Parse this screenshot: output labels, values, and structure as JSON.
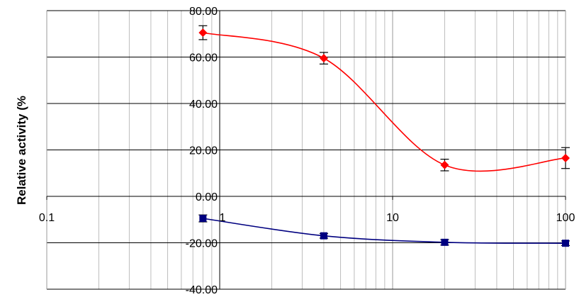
{
  "chart_data": {
    "type": "line",
    "title": "",
    "xlabel": "",
    "ylabel": "Relative activity (%",
    "x_scale": "log",
    "xlim": [
      0.1,
      100
    ],
    "ylim": [
      -40,
      80
    ],
    "x_ticks": [
      {
        "value": 0.1,
        "label": "0.1"
      },
      {
        "value": 1,
        "label": "1"
      },
      {
        "value": 10,
        "label": "10"
      },
      {
        "value": 100,
        "label": "100"
      }
    ],
    "y_ticks": [
      {
        "value": 80,
        "label": "80.00"
      },
      {
        "value": 60,
        "label": "60.00"
      },
      {
        "value": 40,
        "label": "40.00"
      },
      {
        "value": 20,
        "label": "20.00"
      },
      {
        "value": 0,
        "label": "0.00"
      },
      {
        "value": -20,
        "label": "-20.00"
      },
      {
        "value": -40,
        "label": "-40.00"
      }
    ],
    "grid": {
      "major_y": true,
      "minor_x": true
    },
    "legend": "none",
    "series": [
      {
        "color": "#ff0000",
        "marker": "diamond",
        "x": [
          0.8,
          4,
          20,
          100
        ],
        "y": [
          70.5,
          59.5,
          13.5,
          16.5
        ],
        "error": [
          3.0,
          2.5,
          2.5,
          4.5
        ]
      },
      {
        "color": "#000080",
        "marker": "square",
        "x": [
          0.8,
          4,
          20,
          100
        ],
        "y": [
          -9.5,
          -17.0,
          -19.8,
          -20.2
        ],
        "error": [
          1.5,
          1.0,
          1.2,
          1.0
        ]
      }
    ]
  }
}
